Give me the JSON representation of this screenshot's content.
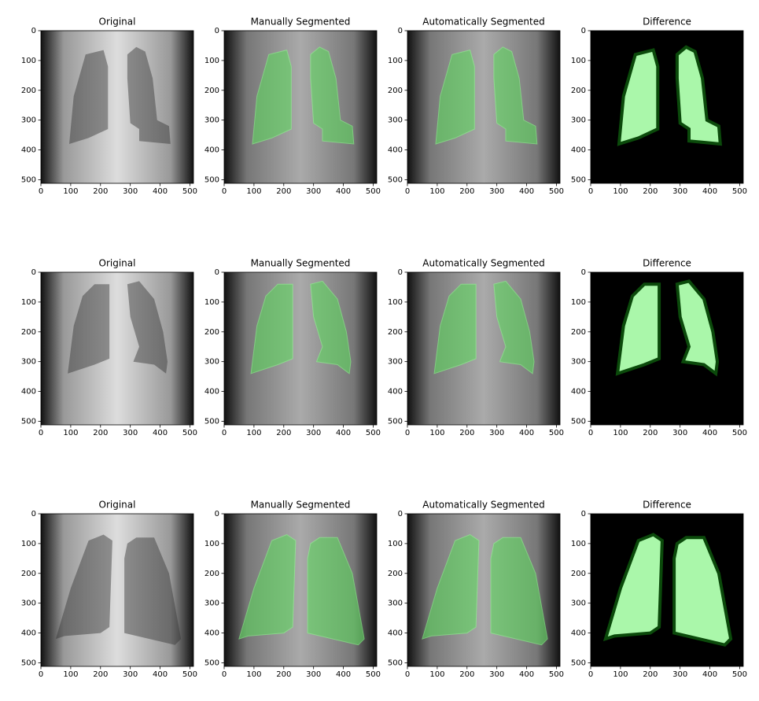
{
  "figure": {
    "panels": [
      {
        "title": "Original",
        "xlim": [
          0,
          512
        ],
        "ylim": [
          512,
          0
        ],
        "xticks": [
          0,
          100,
          200,
          300,
          400,
          500
        ],
        "yticks": [
          0,
          100,
          200,
          300,
          400,
          500
        ]
      },
      {
        "title": "Manually Segmented",
        "xlim": [
          0,
          512
        ],
        "ylim": [
          512,
          0
        ],
        "xticks": [
          0,
          100,
          200,
          300,
          400,
          500
        ],
        "yticks": [
          0,
          100,
          200,
          300,
          400,
          500
        ]
      },
      {
        "title": "Automatically Segmented",
        "xlim": [
          0,
          512
        ],
        "ylim": [
          512,
          0
        ],
        "xticks": [
          0,
          100,
          200,
          300,
          400,
          500
        ],
        "yticks": [
          0,
          100,
          200,
          300,
          400,
          500
        ]
      },
      {
        "title": "Difference",
        "xlim": [
          0,
          512
        ],
        "ylim": [
          512,
          0
        ],
        "xticks": [
          0,
          100,
          200,
          300,
          400,
          500
        ],
        "yticks": [
          0,
          100,
          200,
          300,
          400,
          500
        ]
      },
      {
        "title": "Original",
        "xlim": [
          0,
          512
        ],
        "ylim": [
          512,
          0
        ],
        "xticks": [
          0,
          100,
          200,
          300,
          400,
          500
        ],
        "yticks": [
          0,
          100,
          200,
          300,
          400,
          500
        ]
      },
      {
        "title": "Manually Segmented",
        "xlim": [
          0,
          512
        ],
        "ylim": [
          512,
          0
        ],
        "xticks": [
          0,
          100,
          200,
          300,
          400,
          500
        ],
        "yticks": [
          0,
          100,
          200,
          300,
          400,
          500
        ]
      },
      {
        "title": "Automatically Segmented",
        "xlim": [
          0,
          512
        ],
        "ylim": [
          512,
          0
        ],
        "xticks": [
          0,
          100,
          200,
          300,
          400,
          500
        ],
        "yticks": [
          0,
          100,
          200,
          300,
          400,
          500
        ]
      },
      {
        "title": "Difference",
        "xlim": [
          0,
          512
        ],
        "ylim": [
          512,
          0
        ],
        "xticks": [
          0,
          100,
          200,
          300,
          400,
          500
        ],
        "yticks": [
          0,
          100,
          200,
          300,
          400,
          500
        ]
      },
      {
        "title": "Original",
        "xlim": [
          0,
          512
        ],
        "ylim": [
          512,
          0
        ],
        "xticks": [
          0,
          100,
          200,
          300,
          400,
          500
        ],
        "yticks": [
          0,
          100,
          200,
          300,
          400,
          500
        ]
      },
      {
        "title": "Manually Segmented",
        "xlim": [
          0,
          512
        ],
        "ylim": [
          512,
          0
        ],
        "xticks": [
          0,
          100,
          200,
          300,
          400,
          500
        ],
        "yticks": [
          0,
          100,
          200,
          300,
          400,
          500
        ]
      },
      {
        "title": "Automatically Segmented",
        "xlim": [
          0,
          512
        ],
        "ylim": [
          512,
          0
        ],
        "xticks": [
          0,
          100,
          200,
          300,
          400,
          500
        ],
        "yticks": [
          0,
          100,
          200,
          300,
          400,
          500
        ]
      },
      {
        "title": "Difference",
        "xlim": [
          0,
          512
        ],
        "ylim": [
          512,
          0
        ],
        "xticks": [
          0,
          100,
          200,
          300,
          400,
          500
        ],
        "yticks": [
          0,
          100,
          200,
          300,
          400,
          500
        ]
      }
    ]
  }
}
